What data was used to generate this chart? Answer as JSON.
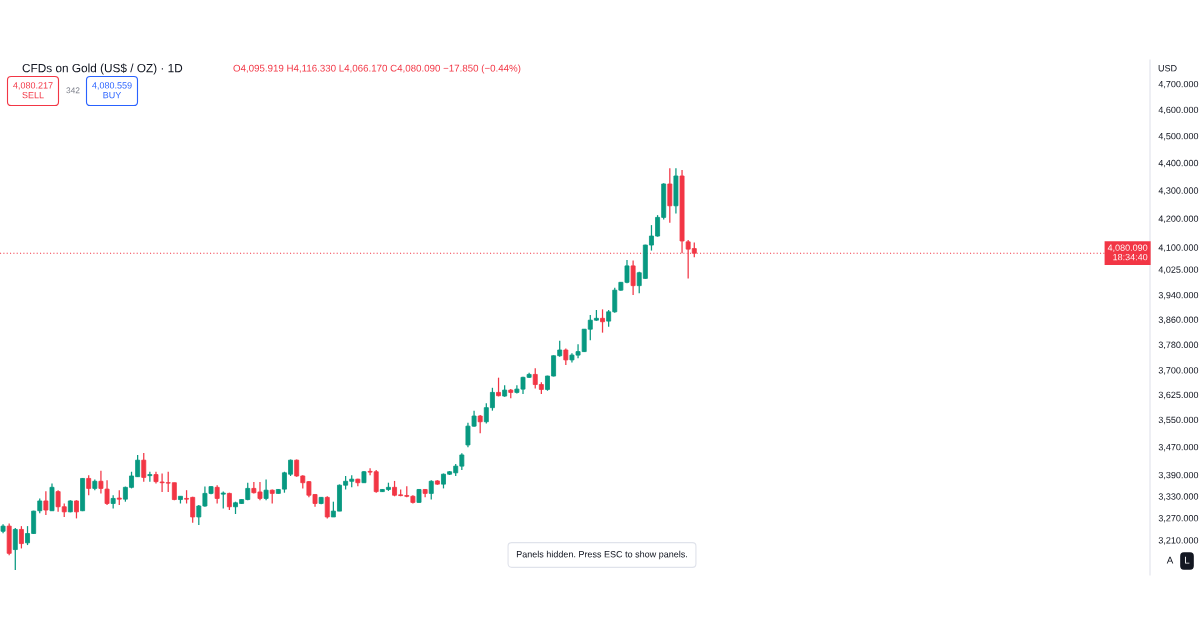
{
  "chart_data": {
    "type": "candlestick",
    "title": "CFDs on Gold (US$ / OZ) · 1D",
    "subtitle": "O4,095.919 H4,116.330 L4,066.170 C4,080.090 −17.850 (−0.44%)",
    "ylabel": "USD",
    "categories": [
      null,
      null,
      null,
      null,
      null,
      null,
      null,
      null,
      null,
      null,
      null,
      null,
      null,
      null,
      null,
      null,
      null,
      null,
      null,
      null,
      null,
      null,
      null,
      null,
      null,
      null,
      null,
      null,
      null,
      null,
      null,
      null,
      null,
      null,
      null,
      null,
      null,
      null,
      null,
      null,
      null,
      null,
      null,
      null,
      null,
      null,
      null,
      null,
      null,
      null,
      null,
      null,
      null,
      null,
      null,
      null,
      null,
      null,
      null,
      null,
      null,
      null,
      null,
      null,
      null,
      null,
      null,
      null,
      null,
      null,
      null,
      null,
      null,
      null,
      null,
      null,
      null,
      null,
      null,
      null,
      null,
      null,
      null,
      null,
      null,
      null,
      null,
      null,
      null,
      null,
      null,
      null,
      null,
      null,
      null,
      null,
      null,
      null,
      null,
      null,
      null,
      null,
      null,
      null,
      null,
      null,
      null,
      null,
      null,
      null,
      null,
      null,
      null,
      null,
      null,
      null,
      null,
      null,
      null,
      null,
      null,
      null,
      null,
      null,
      null,
      null,
      null,
      null,
      null,
      null,
      null,
      null,
      null,
      null,
      null,
      null,
      null,
      null,
      null,
      null,
      null,
      null,
      null,
      null,
      null,
      null,
      null,
      null,
      null,
      null,
      null,
      null,
      null,
      null,
      null,
      null,
      null,
      null,
      null,
      null,
      null,
      null,
      null,
      null,
      null,
      null,
      null,
      null,
      null,
      null,
      null,
      null,
      null,
      null,
      null,
      null,
      null,
      null,
      null,
      null,
      null,
      null,
      null,
      null,
      null,
      null,
      null,
      null
    ],
    "ohlc": [
      [
        3234,
        3253,
        3229,
        3248
      ],
      [
        3248,
        3255,
        3170,
        3175
      ],
      [
        3185,
        3243,
        3131,
        3239
      ],
      [
        3239,
        3248,
        3188,
        3201
      ],
      [
        3203,
        3248,
        3197,
        3228
      ],
      [
        3228,
        3290,
        3227,
        3289
      ],
      [
        3290,
        3324,
        3283,
        3317
      ],
      [
        3317,
        3344,
        3278,
        3292
      ],
      [
        3290,
        3366,
        3289,
        3355
      ],
      [
        3343,
        3347,
        3287,
        3301
      ],
      [
        3301,
        3310,
        3273,
        3287
      ],
      [
        3287,
        3319,
        3286,
        3317
      ],
      [
        3317,
        3319,
        3269,
        3287
      ],
      [
        3290,
        3381,
        3289,
        3380
      ],
      [
        3380,
        3389,
        3333,
        3352
      ],
      [
        3352,
        3377,
        3347,
        3372
      ],
      [
        3372,
        3402,
        3338,
        3352
      ],
      [
        3350,
        3375,
        3306,
        3310
      ],
      [
        3310,
        3333,
        3296,
        3324
      ],
      [
        3325,
        3347,
        3306,
        3322
      ],
      [
        3322,
        3357,
        3315,
        3355
      ],
      [
        3355,
        3399,
        3352,
        3387
      ],
      [
        3385,
        3447,
        3384,
        3432
      ],
      [
        3432,
        3453,
        3371,
        3383
      ],
      [
        3388,
        3399,
        3371,
        3391
      ],
      [
        3391,
        3399,
        3366,
        3371
      ],
      [
        3370,
        3394,
        3342,
        3368
      ],
      [
        3368,
        3399,
        3342,
        3367
      ],
      [
        3368,
        3368,
        3319,
        3321
      ],
      [
        3321,
        3330,
        3310,
        3330
      ],
      [
        3324,
        3347,
        3310,
        3322
      ],
      [
        3327,
        3329,
        3257,
        3273
      ],
      [
        3273,
        3306,
        3251,
        3303
      ],
      [
        3303,
        3357,
        3301,
        3338
      ],
      [
        3338,
        3358,
        3336,
        3357
      ],
      [
        3355,
        3361,
        3310,
        3324
      ],
      [
        3336,
        3343,
        3296,
        3339
      ],
      [
        3338,
        3340,
        3292,
        3301
      ],
      [
        3301,
        3315,
        3281,
        3312
      ],
      [
        3310,
        3322,
        3309,
        3321
      ],
      [
        3321,
        3368,
        3319,
        3352
      ],
      [
        3352,
        3370,
        3338,
        3340
      ],
      [
        3342,
        3370,
        3319,
        3324
      ],
      [
        3324,
        3377,
        3319,
        3347
      ],
      [
        3347,
        3349,
        3310,
        3338
      ],
      [
        3338,
        3350,
        3337,
        3349
      ],
      [
        3350,
        3399,
        3340,
        3396
      ],
      [
        3392,
        3434,
        3387,
        3432
      ],
      [
        3432,
        3434,
        3385,
        3387
      ],
      [
        3387,
        3389,
        3352,
        3368
      ],
      [
        3371,
        3373,
        3327,
        3333
      ],
      [
        3335,
        3336,
        3301,
        3310
      ],
      [
        3310,
        3328,
        3308,
        3327
      ],
      [
        3327,
        3330,
        3269,
        3273
      ],
      [
        3273,
        3315,
        3273,
        3289
      ],
      [
        3289,
        3363,
        3289,
        3361
      ],
      [
        3361,
        3387,
        3349,
        3372
      ],
      [
        3372,
        3389,
        3355,
        3378
      ],
      [
        3378,
        3379,
        3358,
        3368
      ],
      [
        3368,
        3401,
        3367,
        3399
      ],
      [
        3400,
        3409,
        3389,
        3398
      ],
      [
        3399,
        3404,
        3340,
        3343
      ],
      [
        3343,
        3350,
        3342,
        3349
      ],
      [
        3349,
        3368,
        3345,
        3355
      ],
      [
        3355,
        3373,
        3330,
        3333
      ],
      [
        3334,
        3349,
        3330,
        3332
      ],
      [
        3332,
        3358,
        3327,
        3330
      ],
      [
        3330,
        3333,
        3310,
        3313
      ],
      [
        3313,
        3350,
        3312,
        3349
      ],
      [
        3349,
        3350,
        3327,
        3338
      ],
      [
        3338,
        3375,
        3321,
        3372
      ],
      [
        3373,
        3375,
        3362,
        3364
      ],
      [
        3364,
        3394,
        3352,
        3392
      ],
      [
        3392,
        3401,
        3390,
        3399
      ],
      [
        3396,
        3421,
        3387,
        3415
      ],
      [
        3415,
        3452,
        3404,
        3447
      ],
      [
        3476,
        3541,
        3469,
        3531
      ],
      [
        3531,
        3577,
        3529,
        3561
      ],
      [
        3561,
        3564,
        3510,
        3544
      ],
      [
        3544,
        3599,
        3539,
        3586
      ],
      [
        3586,
        3646,
        3577,
        3632
      ],
      [
        3632,
        3677,
        3620,
        3622
      ],
      [
        3621,
        3654,
        3619,
        3639
      ],
      [
        3639,
        3642,
        3614,
        3632
      ],
      [
        3632,
        3654,
        3629,
        3642
      ],
      [
        3642,
        3680,
        3627,
        3678
      ],
      [
        3678,
        3692,
        3676,
        3687
      ],
      [
        3687,
        3706,
        3644,
        3656
      ],
      [
        3656,
        3663,
        3627,
        3641
      ],
      [
        3641,
        3683,
        3637,
        3682
      ],
      [
        3682,
        3746,
        3681,
        3745
      ],
      [
        3745,
        3792,
        3742,
        3763
      ],
      [
        3763,
        3768,
        3716,
        3732
      ],
      [
        3732,
        3753,
        3724,
        3747
      ],
      [
        3747,
        3781,
        3737,
        3758
      ],
      [
        3758,
        3830,
        3757,
        3829
      ],
      [
        3829,
        3875,
        3794,
        3858
      ],
      [
        3858,
        3891,
        3856,
        3864
      ],
      [
        3864,
        3893,
        3818,
        3853
      ],
      [
        3855,
        3891,
        3837,
        3885
      ],
      [
        3885,
        3964,
        3882,
        3956
      ],
      [
        3956,
        3983,
        3954,
        3982
      ],
      [
        3982,
        4057,
        3979,
        4037
      ],
      [
        4037,
        4055,
        3940,
        3971
      ],
      [
        3971,
        4017,
        3946,
        4014
      ],
      [
        3995,
        4109,
        3994,
        4108
      ],
      [
        4108,
        4177,
        4089,
        4139
      ],
      [
        4139,
        4212,
        4137,
        4204
      ],
      [
        4204,
        4326,
        4197,
        4323
      ],
      [
        4323,
        4380,
        4185,
        4245
      ],
      [
        4245,
        4380,
        4218,
        4352
      ],
      [
        4352,
        4374,
        4080,
        4122
      ],
      [
        4119,
        4125,
        3995,
        4094
      ],
      [
        4095.919,
        4116.33,
        4066.17,
        4080.09
      ],
      null,
      null,
      null,
      null,
      null,
      null,
      null,
      null,
      null,
      null,
      null,
      null,
      null,
      null,
      null,
      null,
      null,
      null,
      null,
      null,
      null,
      null,
      null,
      null,
      null,
      null,
      null,
      null,
      null,
      null,
      null,
      null,
      null,
      null,
      null,
      null,
      null,
      null,
      null,
      null,
      null,
      null,
      null,
      null,
      null,
      null,
      null,
      null,
      null,
      null,
      null,
      null,
      null,
      null,
      null,
      null,
      null,
      null,
      null,
      null,
      null,
      null,
      null,
      null,
      null,
      null,
      null,
      null,
      null,
      null,
      null,
      null,
      null,
      null
    ],
    "colors": [
      "#089981",
      "#f23645",
      "#089981",
      "#f23645",
      "#089981",
      "#089981",
      "#089981",
      "#f23645",
      "#089981",
      "#f23645",
      "#f23645",
      "#089981",
      "#f23645",
      "#089981",
      "#f23645",
      "#089981",
      "#f23645",
      "#f23645",
      "#089981",
      "#f23645",
      "#089981",
      "#089981",
      "#089981",
      "#f23645",
      "#089981",
      "#f23645",
      "#f23645",
      "#f23645",
      "#f23645",
      "#089981",
      "#f23645",
      "#f23645",
      "#089981",
      "#089981",
      "#089981",
      "#f23645",
      "#089981",
      "#f23645",
      "#089981",
      "#089981",
      "#089981",
      "#f23645",
      "#f23645",
      "#089981",
      "#f23645",
      "#089981",
      "#089981",
      "#089981",
      "#f23645",
      "#f23645",
      "#f23645",
      "#f23645",
      "#089981",
      "#f23645",
      "#089981",
      "#089981",
      "#089981",
      "#089981",
      "#f23645",
      "#089981",
      "#f23645",
      "#f23645",
      "#089981",
      "#089981",
      "#f23645",
      "#f23645",
      "#f23645",
      "#f23645",
      "#089981",
      "#f23645",
      "#089981",
      "#f23645",
      "#089981",
      "#089981",
      "#089981",
      "#089981",
      "#089981",
      "#089981",
      "#f23645",
      "#089981",
      "#089981",
      "#f23645",
      "#089981",
      "#f23645",
      "#089981",
      "#089981",
      "#089981",
      "#f23645",
      "#f23645",
      "#089981",
      "#089981",
      "#089981",
      "#f23645",
      "#089981",
      "#089981",
      "#089981",
      "#089981",
      "#089981",
      "#f23645",
      "#089981",
      "#089981",
      "#089981",
      "#089981",
      "#f23645",
      "#089981",
      "#089981",
      "#089981",
      "#089981",
      "#089981",
      "#f23645",
      "#089981",
      "#f23645",
      "#f23645",
      "#f23645",
      null,
      null,
      null,
      null,
      null,
      null,
      null,
      null,
      null,
      null,
      null,
      null,
      null,
      null,
      null,
      null,
      null,
      null,
      null,
      null,
      null,
      null,
      null,
      null,
      null,
      null,
      null,
      null,
      null,
      null,
      null,
      null,
      null,
      null,
      null,
      null,
      null,
      null,
      null,
      null,
      null,
      null,
      null,
      null,
      null,
      null,
      null,
      null,
      null,
      null,
      null,
      null,
      null,
      null,
      null,
      null,
      null,
      null,
      null,
      null,
      null,
      null,
      null,
      null,
      null,
      null,
      null,
      null,
      null,
      null,
      null,
      null,
      null,
      null
    ],
    "log": true,
    "ylim": [
      3118,
      4795
    ],
    "yticks": [
      {
        "value": 4700,
        "label": "4,700.000"
      },
      {
        "value": 4600,
        "label": "4,600.000"
      },
      {
        "value": 4500,
        "label": "4,500.000"
      },
      {
        "value": 4400,
        "label": "4,400.000"
      },
      {
        "value": 4300,
        "label": "4,300.000"
      },
      {
        "value": 4200,
        "label": "4,200.000"
      },
      {
        "value": 4100,
        "label": "4,100.000"
      },
      {
        "value": 4025,
        "label": "4,025.000"
      },
      {
        "value": 3940,
        "label": "3,940.000"
      },
      {
        "value": 3860,
        "label": "3,860.000"
      },
      {
        "value": 3780,
        "label": "3,780.000"
      },
      {
        "value": 3700,
        "label": "3,700.000"
      },
      {
        "value": 3625,
        "label": "3,625.000"
      },
      {
        "value": 3550,
        "label": "3,550.000"
      },
      {
        "value": 3470,
        "label": "3,470.000"
      },
      {
        "value": 3390,
        "label": "3,390.000"
      },
      {
        "value": 3330,
        "label": "3,330.000"
      },
      {
        "value": 3270,
        "label": "3,270.000"
      },
      {
        "value": 3210,
        "label": "3,210.000"
      }
    ],
    "tick_labels": "y",
    "grid": false,
    "ref_lines": [
      {
        "axis": "y",
        "value": 4080.09,
        "label": "4,080.090\n18:34:40",
        "color": "#f23645",
        "line_style": "dotted"
      }
    ],
    "annotations": [
      "4,080.217\nSELL",
      "342",
      "4,080.559\nBUY",
      "Panels hidden. Press ESC to show panels.",
      "A",
      "L"
    ]
  }
}
